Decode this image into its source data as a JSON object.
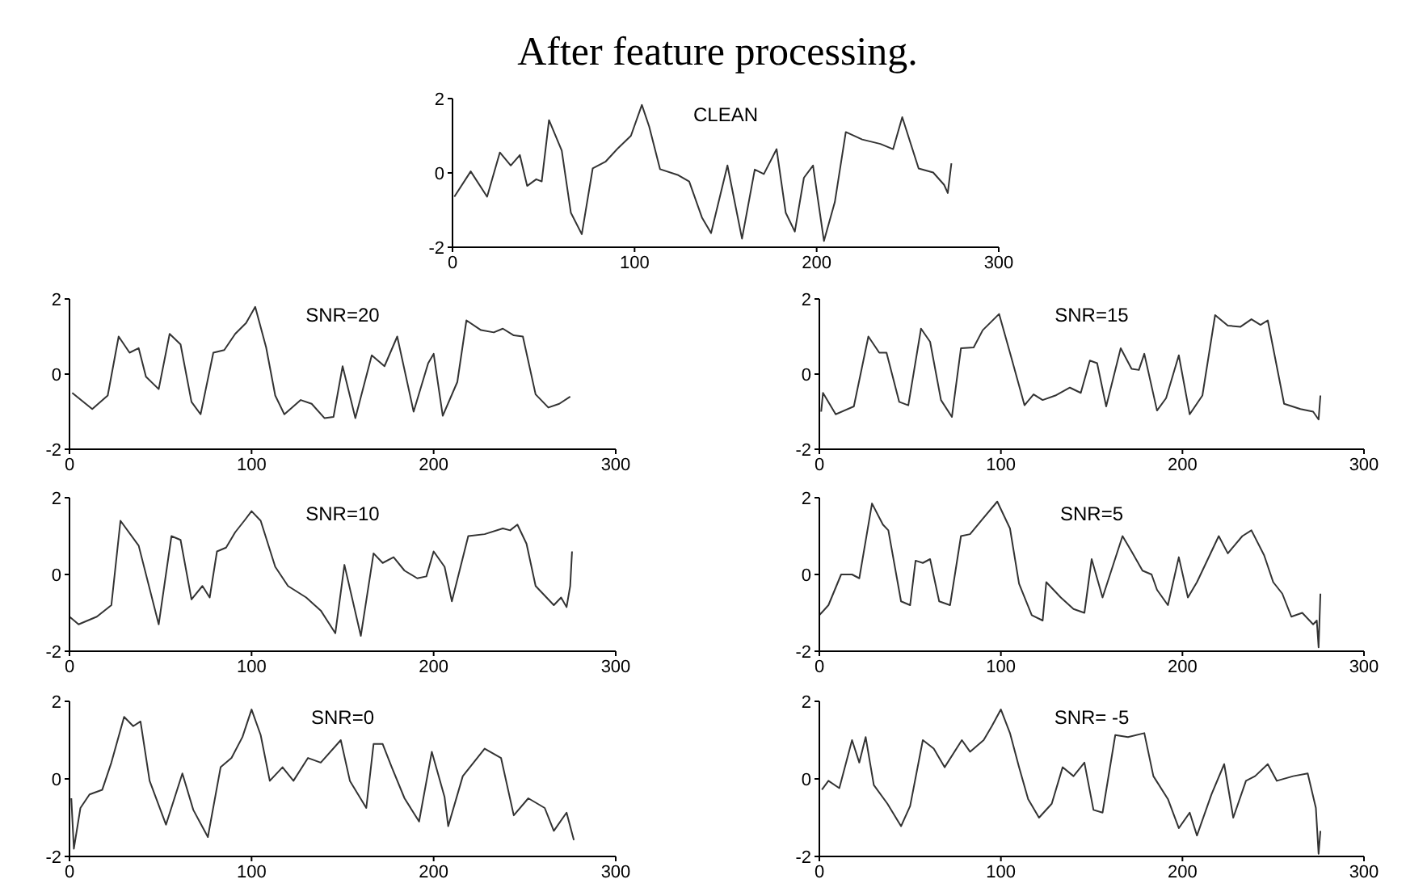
{
  "chart_data": [
    {
      "type": "line",
      "title": "After feature processing.",
      "subtitle": "CLEAN",
      "color": "#333333",
      "xlim": [
        0,
        300
      ],
      "xticks": [
        0,
        100,
        200,
        300
      ],
      "ylim": [
        -2,
        2
      ],
      "yticks": [
        -2,
        0,
        2
      ],
      "x": [
        1,
        10,
        19,
        26,
        32,
        37,
        41,
        46,
        49,
        53,
        60,
        65,
        71,
        77,
        84,
        91,
        98,
        104,
        108,
        114,
        124,
        130,
        137,
        142,
        151,
        159,
        166,
        171,
        178,
        183,
        188,
        193,
        198,
        204,
        210,
        216,
        225,
        235,
        242,
        247,
        256,
        264,
        270,
        272,
        274
      ],
      "values": [
        -0.64,
        0.04,
        -0.64,
        0.55,
        0.2,
        0.48,
        -0.35,
        -0.17,
        -0.23,
        1.42,
        0.6,
        -1.07,
        -1.65,
        0.12,
        0.3,
        0.67,
        1,
        1.83,
        1.25,
        0.1,
        -0.06,
        -0.23,
        -1.2,
        -1.62,
        0.2,
        -1.77,
        0.09,
        -0.03,
        0.64,
        -1.07,
        -1.58,
        -0.13,
        0.2,
        -1.83,
        -0.78,
        1.1,
        0.9,
        0.78,
        0.64,
        1.5,
        0.12,
        0.01,
        -0.32,
        -0.54,
        0.26
      ]
    },
    {
      "type": "line",
      "title": "SNR=20",
      "color": "#333333",
      "xlim": [
        0,
        300
      ],
      "xticks": [
        0,
        100,
        200,
        300
      ],
      "ylim": [
        -2,
        2
      ],
      "yticks": [
        -2,
        0,
        2
      ],
      "x": [
        1.5,
        12.5,
        21,
        27,
        33,
        38,
        42,
        49,
        55,
        61,
        67,
        72,
        79,
        85,
        91,
        97,
        102,
        108,
        113,
        118,
        127,
        133,
        140,
        145,
        150,
        157,
        166,
        173,
        180,
        189,
        197,
        200,
        205,
        213,
        218,
        226,
        233,
        238,
        244,
        249,
        256,
        263,
        269,
        275
      ],
      "values": [
        -0.5,
        -0.93,
        -0.57,
        1,
        0.57,
        0.69,
        -0.07,
        -0.4,
        1.07,
        0.79,
        -0.74,
        -1.07,
        0.57,
        0.64,
        1.07,
        1.36,
        1.79,
        0.71,
        -0.57,
        -1.07,
        -0.69,
        -0.79,
        -1.17,
        -1.14,
        0.21,
        -1.17,
        0.5,
        0.21,
        1,
        -1,
        0.29,
        0.54,
        -1.11,
        -0.21,
        1.43,
        1.17,
        1.11,
        1.21,
        1.03,
        1,
        -0.54,
        -0.89,
        -0.79,
        -0.6
      ]
    },
    {
      "type": "line",
      "title": "SNR=15",
      "color": "#333333",
      "xlim": [
        0,
        300
      ],
      "xticks": [
        0,
        100,
        200,
        300
      ],
      "ylim": [
        -2,
        2
      ],
      "yticks": [
        -2,
        0,
        2
      ],
      "x": [
        1,
        2,
        9,
        19,
        27,
        33,
        37,
        44,
        49,
        56,
        61,
        67,
        73,
        78,
        85,
        90,
        99,
        105,
        113,
        118,
        123,
        130,
        138,
        144,
        149,
        153,
        158,
        166,
        172,
        176,
        179,
        186,
        191,
        198,
        204,
        211,
        218,
        225,
        232,
        238,
        243,
        247,
        256,
        265,
        272,
        275,
        276
      ],
      "values": [
        -1,
        -0.5,
        -1.07,
        -0.86,
        1,
        0.57,
        0.57,
        -0.74,
        -0.83,
        1.21,
        0.86,
        -0.69,
        -1.14,
        0.69,
        0.71,
        1.17,
        1.6,
        0.57,
        -0.83,
        -0.54,
        -0.69,
        -0.57,
        -0.36,
        -0.5,
        0.36,
        0.29,
        -0.86,
        0.69,
        0.14,
        0.11,
        0.54,
        -0.97,
        -0.64,
        0.5,
        -1.07,
        -0.57,
        1.57,
        1.29,
        1.26,
        1.46,
        1.31,
        1.43,
        -0.79,
        -0.93,
        -1,
        -1.21,
        -0.57
      ]
    },
    {
      "type": "line",
      "title": "SNR=10",
      "color": "#333333",
      "xlim": [
        0,
        300
      ],
      "xticks": [
        0,
        100,
        200,
        300
      ],
      "ylim": [
        -2,
        2
      ],
      "yticks": [
        -2,
        0,
        2
      ],
      "x": [
        0,
        5,
        15,
        23,
        28,
        38,
        49,
        56,
        61,
        67,
        73,
        77,
        81,
        86,
        91,
        96,
        100,
        105,
        113,
        120,
        130,
        138,
        146,
        151,
        160,
        167,
        172,
        178,
        184,
        191,
        196,
        200,
        206,
        210,
        219,
        228,
        238,
        242,
        246,
        251,
        256,
        262,
        266,
        270,
        273,
        275,
        276
      ],
      "values": [
        -1.1,
        -1.3,
        -1.1,
        -0.8,
        1.4,
        0.75,
        -1.3,
        1,
        0.9,
        -0.65,
        -0.3,
        -0.6,
        0.6,
        0.7,
        1.1,
        1.4,
        1.65,
        1.4,
        0.2,
        -0.3,
        -0.6,
        -0.94,
        -1.53,
        0.25,
        -1.6,
        0.55,
        0.3,
        0.45,
        0.1,
        -0.1,
        -0.05,
        0.6,
        0.2,
        -0.7,
        1,
        1.05,
        1.2,
        1.15,
        1.3,
        0.8,
        -0.3,
        -0.6,
        -0.8,
        -0.6,
        -0.85,
        -0.3,
        0.6
      ]
    },
    {
      "type": "line",
      "title": "SNR=5",
      "color": "#333333",
      "xlim": [
        0,
        300
      ],
      "xticks": [
        0,
        100,
        200,
        300
      ],
      "ylim": [
        -2,
        2
      ],
      "yticks": [
        -2,
        0,
        2
      ],
      "x": [
        0,
        5,
        12,
        18,
        22,
        29,
        35,
        38,
        45,
        50,
        53,
        57,
        61,
        66,
        72,
        78,
        83,
        90,
        98,
        105,
        110,
        117,
        123,
        125,
        133,
        140,
        146,
        150,
        156,
        167,
        172,
        178,
        183,
        186,
        192,
        198,
        203,
        208,
        220,
        225,
        233,
        238,
        245,
        250,
        255,
        260,
        266,
        272,
        274,
        275,
        276
      ],
      "values": [
        -1.06,
        -0.8,
        0,
        0,
        -0.1,
        1.85,
        1.3,
        1.15,
        -0.7,
        -0.8,
        0.36,
        0.3,
        0.4,
        -0.7,
        -0.8,
        1,
        1.05,
        1.45,
        1.9,
        1.2,
        -0.24,
        -1.06,
        -1.2,
        -0.2,
        -0.6,
        -0.9,
        -1,
        0.4,
        -0.6,
        1,
        0.6,
        0.1,
        0,
        -0.4,
        -0.8,
        0.45,
        -0.6,
        -0.2,
        1,
        0.55,
        1,
        1.15,
        0.5,
        -0.2,
        -0.5,
        -1.1,
        -1,
        -1.3,
        -1.2,
        -1.9,
        -0.5
      ]
    },
    {
      "type": "line",
      "title": "SNR=0",
      "color": "#333333",
      "xlim": [
        0,
        300
      ],
      "xticks": [
        0,
        100,
        200,
        300
      ],
      "ylim": [
        -2,
        2
      ],
      "yticks": [
        -2,
        0,
        2
      ],
      "x": [
        1,
        2.4,
        6,
        11,
        18,
        23,
        30,
        35,
        39,
        44,
        53,
        62,
        68,
        76,
        83,
        89,
        95,
        100,
        105,
        110,
        117,
        123,
        131,
        138,
        149,
        154,
        163,
        167,
        172,
        177,
        184,
        192,
        199,
        206,
        208,
        216,
        228,
        237,
        244,
        252,
        261,
        266,
        273,
        277
      ],
      "values": [
        -0.5,
        -1.8,
        -0.75,
        -0.4,
        -0.28,
        0.42,
        1.6,
        1.36,
        1.48,
        -0.05,
        -1.18,
        0.14,
        -0.8,
        -1.5,
        0.3,
        0.54,
        1.08,
        1.79,
        1.13,
        -0.05,
        0.3,
        -0.05,
        0.54,
        0.42,
        1,
        -0.05,
        -0.75,
        0.9,
        0.9,
        0.3,
        -0.5,
        -1.1,
        0.7,
        -0.47,
        -1.22,
        0.07,
        0.78,
        0.54,
        -0.94,
        -0.5,
        -0.75,
        -1.34,
        -0.87,
        -1.58
      ]
    },
    {
      "type": "line",
      "title": "SNR= -5",
      "color": "#333333",
      "xlim": [
        0,
        300
      ],
      "xticks": [
        0,
        100,
        200,
        300
      ],
      "ylim": [
        -2,
        2
      ],
      "yticks": [
        -2,
        0,
        2
      ],
      "x": [
        1.4,
        5,
        11,
        18,
        22,
        25.5,
        30,
        37.5,
        45,
        50,
        57,
        63,
        69,
        78.5,
        83,
        90.5,
        95,
        100,
        105,
        110,
        115,
        121,
        128,
        134,
        140,
        146,
        151,
        156,
        163,
        170,
        179,
        184,
        192,
        198,
        204,
        208,
        216,
        223,
        228,
        235,
        240,
        247,
        252,
        261,
        269,
        273.5,
        275,
        276
      ],
      "values": [
        -0.28,
        -0.05,
        -0.24,
        1,
        0.42,
        1.08,
        -0.16,
        -0.64,
        -1.22,
        -0.7,
        1,
        0.78,
        0.3,
        1,
        0.7,
        1,
        1.36,
        1.79,
        1.18,
        0.3,
        -0.52,
        -1,
        -0.64,
        0.3,
        0.07,
        0.42,
        -0.8,
        -0.87,
        1.13,
        1.08,
        1.18,
        0.07,
        -0.52,
        -1.27,
        -0.87,
        -1.46,
        -0.4,
        0.38,
        -1,
        -0.05,
        0.07,
        0.38,
        -0.05,
        0.07,
        0.14,
        -0.75,
        -1.93,
        -1.34
      ]
    }
  ]
}
